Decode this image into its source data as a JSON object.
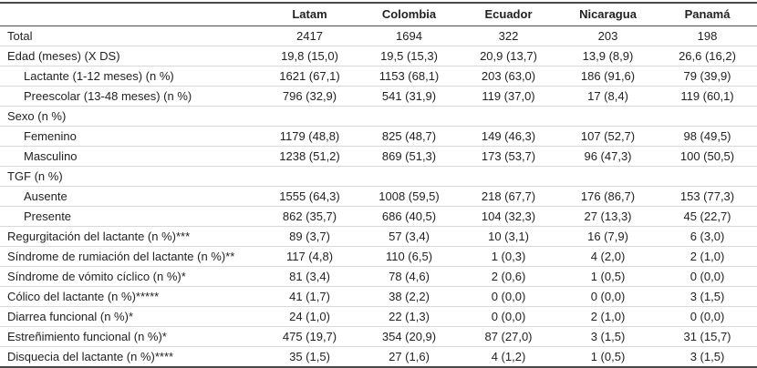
{
  "table": {
    "columns": [
      "Latam",
      "Colombia",
      "Ecuador",
      "Nicaragua",
      "Panamá"
    ],
    "rows": [
      {
        "label": "Total",
        "indent": false,
        "values": [
          "2417",
          "1694",
          "322",
          "203",
          "198"
        ]
      },
      {
        "label": "Edad (meses) (X DS)",
        "indent": false,
        "values": [
          "19,8 (15,0)",
          "19,5 (15,3)",
          "20,9 (13,7)",
          "13,9 (8,9)",
          "26,6 (16,2)"
        ]
      },
      {
        "label": "Lactante (1-12 meses) (n %)",
        "indent": true,
        "values": [
          "1621 (67,1)",
          "1153 (68,1)",
          "203 (63,0)",
          "186 (91,6)",
          "79 (39,9)"
        ]
      },
      {
        "label": "Preescolar (13-48 meses) (n %)",
        "indent": true,
        "values": [
          "796 (32,9)",
          "541 (31,9)",
          "119 (37,0)",
          "17 (8,4)",
          "119 (60,1)"
        ]
      },
      {
        "label": "Sexo (n %)",
        "indent": false,
        "values": [
          "",
          "",
          "",
          "",
          ""
        ]
      },
      {
        "label": "Femenino",
        "indent": true,
        "values": [
          "1179 (48,8)",
          "825 (48,7)",
          "149 (46,3)",
          "107 (52,7)",
          "98 (49,5)"
        ]
      },
      {
        "label": "Masculino",
        "indent": true,
        "values": [
          "1238 (51,2)",
          "869 (51,3)",
          "173 (53,7)",
          "96 (47,3)",
          "100 (50,5)"
        ]
      },
      {
        "label": "TGF (n %)",
        "indent": false,
        "values": [
          "",
          "",
          "",
          "",
          ""
        ]
      },
      {
        "label": "Ausente",
        "indent": true,
        "values": [
          "1555 (64,3)",
          "1008 (59,5)",
          "218 (67,7)",
          "176 (86,7)",
          "153 (77,3)"
        ]
      },
      {
        "label": "Presente",
        "indent": true,
        "values": [
          "862 (35,7)",
          "686 (40,5)",
          "104 (32,3)",
          "27 (13,3)",
          "45 (22,7)"
        ]
      },
      {
        "label": "Regurgitación del lactante (n %)***",
        "indent": false,
        "values": [
          "89 (3,7)",
          "57 (3,4)",
          "10 (3,1)",
          "16 (7,9)",
          "6 (3,0)"
        ]
      },
      {
        "label": "Síndrome de rumiación del lactante (n %)**",
        "indent": false,
        "values": [
          "117 (4,8)",
          "110 (6,5)",
          "1 (0,3)",
          "4 (2,0)",
          "2 (1,0)"
        ]
      },
      {
        "label": "Síndrome de vómito cíclico (n %)*",
        "indent": false,
        "values": [
          "81 (3,4)",
          "78 (4,6)",
          "2 (0,6)",
          "1 (0,5)",
          "0 (0,0)"
        ]
      },
      {
        "label": "Cólico del lactante (n %)*****",
        "indent": false,
        "values": [
          "41 (1,7)",
          "38 (2,2)",
          "0 (0,0)",
          "0 (0,0)",
          "3 (1,5)"
        ]
      },
      {
        "label": "Diarrea funcional (n %)*",
        "indent": false,
        "values": [
          "24 (1,0)",
          "22 (1,3)",
          "0 (0,0)",
          "2 (1,0)",
          "0 (0,0)"
        ]
      },
      {
        "label": "Estreñimiento funcional (n %)*",
        "indent": false,
        "values": [
          "475 (19,7)",
          "354 (20,9)",
          "87 (27,0)",
          "3 (1,5)",
          "31 (15,7)"
        ]
      },
      {
        "label": "Disquecia del lactante (n %)****",
        "indent": false,
        "values": [
          "35 (1,5)",
          "27 (1,6)",
          "4 (1,2)",
          "1 (0,5)",
          "3 (1,5)"
        ]
      }
    ]
  }
}
